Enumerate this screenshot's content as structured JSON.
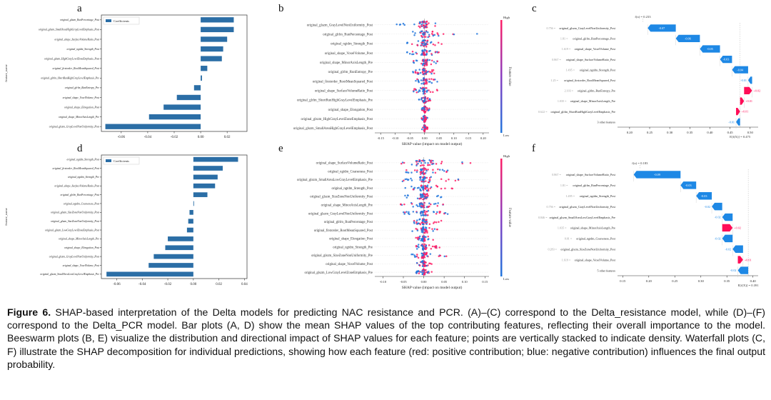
{
  "figure": {
    "caption_label": "Figure 6.",
    "caption_text": "SHAP-based interpretation of the Delta models for predicting NAC resistance and PCR. (A)–(C) correspond to the Delta_resistance model, while (D)–(F) correspond to the Delta_PCR model. Bar plots (A, D) show the mean SHAP values of the top contributing features, reflecting their overall importance to the model. Beeswarm plots (B, E) visualize the distribution and directional impact of SHAP values for each feature; points are vertically stacked to indicate density. Waterfall plots (C, F) illustrate the SHAP decomposition for individual predictions, showing how each feature (red: positive contribution; blue: negative contribution) influences the final output probability."
  },
  "panels": {
    "a": {
      "letter": "a"
    },
    "b": {
      "letter": "b"
    },
    "c": {
      "letter": "c"
    },
    "d": {
      "letter": "d"
    },
    "e": {
      "letter": "e"
    },
    "f": {
      "letter": "f"
    }
  },
  "colors": {
    "bar": "#2b6ea6",
    "shap_pos": "#ff0d57",
    "shap_neg": "#1e88e5",
    "beeswarm_low": "#2277dd",
    "beeswarm_high": "#ff1f66"
  },
  "chart_data": [
    {
      "panel": "a",
      "type": "bar",
      "orientation": "horizontal",
      "legend": "Coefficients",
      "legend_position": "top-left",
      "ylabel": "feature_name",
      "xlabel": "",
      "xlim": [
        -0.075,
        0.035
      ],
      "xticks": [
        "-0.06",
        "-0.04",
        "-0.02",
        "0.00",
        "0.02"
      ],
      "xtick_values": [
        -0.06,
        -0.04,
        -0.02,
        0.0,
        0.02
      ],
      "categories": [
        "original_glszm_RunPercentage_Post",
        "original_glszm_SmallAreaHighGrayLevelEmphasis_Post",
        "original_shape_SurfaceVolumeRatio_Post",
        "original_ngtdm_Strength_Post",
        "original_glszm_HighGrayLevelZoneEmphasis_Post",
        "original_firstorder_RootMeanSquared_Post",
        "original_glrlm_ShortRunHighGrayLevelEmphasis_Pre",
        "original_glrlm_RunEntropy_Pre",
        "original_shape_VoxelVolume_Post",
        "original_shape_Elongation_Post",
        "original_shape_MinorAxisLength_Pre",
        "original_glszm_GrayLevelNonUniformity_Post"
      ],
      "values": [
        0.025,
        0.025,
        0.02,
        0.017,
        0.016,
        0.005,
        0.001,
        -0.005,
        -0.018,
        -0.028,
        -0.039,
        -0.072
      ]
    },
    {
      "panel": "b",
      "type": "scatter",
      "subtype": "beeswarm",
      "xlabel": "SHAP value (impact on model output)",
      "colorbar_label": "Feature value",
      "colorbar_high": "High",
      "colorbar_low": "Low",
      "xlim": [
        -0.17,
        0.22
      ],
      "xticks": [
        "-0.15",
        "-0.10",
        "-0.05",
        "0.00",
        "0.05",
        "0.10",
        "0.15",
        "0.20"
      ],
      "xtick_values": [
        -0.15,
        -0.1,
        -0.05,
        0.0,
        0.05,
        0.1,
        0.15,
        0.2
      ],
      "categories": [
        "original_glszm_GrayLevelNonUniformity_Post",
        "original_glrlm_RunPercentage_Post",
        "original_ngtdm_Strength_Post",
        "original_shape_VoxelVolume_Post",
        "original_shape_MinorAxisLength_Pre",
        "original_glrlm_RunEntropy_Pre",
        "original_firstorder_RootMeanSquared_Post",
        "original_shape_SurfaceVolumeRatio_Post",
        "original_glrlm_ShortRunHighGrayLevelEmphasis_Pre",
        "original_shape_Elongation_Post",
        "original_glszm_HighGrayLevelZoneEmphasis_Post",
        "original_glszm_SmallAreaHighGrayLevelEmphasis_Post"
      ],
      "ranges": [
        [
          -0.1,
          0.05
        ],
        [
          -0.05,
          0.2
        ],
        [
          -0.06,
          0.06
        ],
        [
          -0.06,
          0.05
        ],
        [
          -0.04,
          0.05
        ],
        [
          -0.04,
          0.05
        ],
        [
          -0.03,
          0.05
        ],
        [
          -0.04,
          0.05
        ],
        [
          -0.02,
          0.02
        ],
        [
          -0.01,
          0.02
        ],
        [
          -0.01,
          0.01
        ],
        [
          -0.01,
          0.01
        ]
      ]
    },
    {
      "panel": "c",
      "type": "bar",
      "subtype": "waterfall",
      "top_label": "f(x) = 0.233",
      "base_label": "E[f(X)] = 0.475",
      "xlim": [
        0.17,
        0.52
      ],
      "xticks": [
        "0.20",
        "0.25",
        "0.30",
        "0.35",
        "0.40",
        "0.45",
        "0.50"
      ],
      "xtick_values": [
        0.2,
        0.25,
        0.3,
        0.35,
        0.4,
        0.45,
        0.5
      ],
      "features": [
        {
          "value": "0.756",
          "name": "original_glszm_GrayLevelNonUniformity_Post",
          "shap": -0.07,
          "label": "-0.07"
        },
        {
          "value": "1.81",
          "name": "original_glrlm_RunPercentage_Post",
          "shap": -0.06,
          "label": "-0.06"
        },
        {
          "value": "1.619",
          "name": "original_shape_VoxelVolume_Post",
          "shap": -0.05,
          "label": "-0.05"
        },
        {
          "value": "0.867",
          "name": "original_shape_SurfaceVolumeRatio_Post",
          "shap": -0.03,
          "label": "-0.03"
        },
        {
          "value": "1.495",
          "name": "original_ngtdm_Strength_Post",
          "shap": -0.04,
          "label": "-0.04"
        },
        {
          "value": "1.25",
          "name": "original_firstorder_RootMeanSquared_Post",
          "shap": -0.01,
          "label": "-0.01"
        },
        {
          "value": "2.103",
          "name": "original_glrlm_RunEntropy_Pre",
          "shap": 0.02,
          "label": "+0.02"
        },
        {
          "value": "1.035",
          "name": "original_shape_MinorAxisLength_Pre",
          "shap": 0.01,
          "label": "+0.01"
        },
        {
          "value": "0.622",
          "name": "original_glrlm_ShortRunHighGrayLevelEmphasis_Pre",
          "shap": 0.01,
          "label": "+0.01"
        },
        {
          "value": "",
          "name": "3 other features",
          "shap": -0.01,
          "label": "-0.01"
        }
      ]
    },
    {
      "panel": "d",
      "type": "bar",
      "orientation": "horizontal",
      "legend": "Coefficients",
      "legend_position": "top-left",
      "ylabel": "feature_name",
      "xlabel": "",
      "xlim": [
        -0.072,
        0.042
      ],
      "xticks": [
        "-0.06",
        "-0.04",
        "-0.02",
        "0.00",
        "0.02",
        "0.04"
      ],
      "xtick_values": [
        -0.06,
        -0.04,
        -0.02,
        0.0,
        0.02,
        0.04
      ],
      "categories": [
        "original_ngtdm_Strength_Post",
        "original_firstorder_RootMeanSquared_Post",
        "original_ngtdm_Strength_Pre",
        "original_shape_SurfaceVolumeRatio_Post",
        "original_glrlm_RunPercentage_Post",
        "original_ngtdm_Coarseness_Post",
        "original_glszm_SizeZoneNonUniformity_Post",
        "original_glszm_SizeZoneNonUniformity_Post",
        "original_glszm_LowGrayLevelZoneEmphasis_Post",
        "original_shape_MinorAxisLength_Pre",
        "original_shape_Elongation_Post",
        "original_glszm_GrayLevelNonUniformity_Post",
        "original_shape_VoxelVolume_Post",
        "original_glszm_SmallAreaLowGrayLevelEmphasis_Pre"
      ],
      "values": [
        0.035,
        0.023,
        0.019,
        0.017,
        0.011,
        0.0005,
        -0.003,
        -0.004,
        -0.005,
        -0.02,
        -0.022,
        -0.031,
        -0.035,
        -0.068
      ]
    },
    {
      "panel": "e",
      "type": "scatter",
      "subtype": "beeswarm",
      "xlabel": "SHAP value (impact on model output)",
      "colorbar_label": "Feature value",
      "colorbar_high": "High",
      "colorbar_low": "Low",
      "xlim": [
        -0.12,
        0.16
      ],
      "xticks": [
        "-0.10",
        "-0.05",
        "0.00",
        "0.05",
        "0.10",
        "0.15"
      ],
      "xtick_values": [
        -0.1,
        -0.05,
        0.0,
        0.05,
        0.1,
        0.15
      ],
      "categories": [
        "original_shape_SurfaceVolumeRatio_Post",
        "original_ngtdm_Coarseness_Post",
        "original_glszm_SmallAreaLowGrayLevelEmphasis_Pre",
        "original_ngtdm_Strength_Post",
        "original_glszm_SizeZoneNonUniformity_Post",
        "original_shape_MinorAxisLength_Pre",
        "original_glszm_GrayLevelNonUniformity_Post",
        "original_glrlm_RunPercentage_Post",
        "original_firstorder_RootMeanSquared_Post",
        "original_shape_Elongation_Post",
        "original_ngtdm_Strength_Pre",
        "original_glszm_SizeZoneNonUniformity_Pre",
        "original_shape_VoxelVolume_Post",
        "original_glszm_LowGrayLevelZoneEmphasis_Pre"
      ],
      "ranges": [
        [
          -0.11,
          0.13
        ],
        [
          -0.05,
          0.07
        ],
        [
          -0.06,
          0.09
        ],
        [
          -0.05,
          0.1
        ],
        [
          -0.05,
          0.06
        ],
        [
          -0.06,
          0.05
        ],
        [
          -0.05,
          0.06
        ],
        [
          -0.03,
          0.05
        ],
        [
          -0.03,
          0.04
        ],
        [
          -0.02,
          0.03
        ],
        [
          -0.02,
          0.04
        ],
        [
          -0.03,
          0.06
        ],
        [
          -0.02,
          0.02
        ],
        [
          -0.02,
          0.02
        ]
      ]
    },
    {
      "panel": "f",
      "type": "bar",
      "subtype": "waterfall",
      "top_label": "f(x) = 0.183",
      "base_label": "E[f(X)] = 0.391",
      "xlim": [
        0.14,
        0.41
      ],
      "xticks": [
        "0.15",
        "0.20",
        "0.25",
        "0.30",
        "0.35",
        "0.40"
      ],
      "xtick_values": [
        0.15,
        0.2,
        0.25,
        0.3,
        0.35,
        0.4
      ],
      "features": [
        {
          "value": "0.867",
          "name": "original_shape_SurfaceVolumeRatio_Post",
          "shap": -0.09,
          "label": "-0.09"
        },
        {
          "value": "1.81",
          "name": "original_glrlm_RunPercentage_Post",
          "shap": -0.03,
          "label": "-0.03"
        },
        {
          "value": "1.495",
          "name": "original_ngtdm_Strength_Post",
          "shap": -0.03,
          "label": "-0.03"
        },
        {
          "value": "0.756",
          "name": "original_glszm_GrayLevelNonUniformity_Post",
          "shap": -0.02,
          "label": "-0.02"
        },
        {
          "value": "0.846",
          "name": "original_glszm_SmallAreaLowGrayLevelEmphasis_Pre",
          "shap": -0.02,
          "label": "-0.02"
        },
        {
          "value": "1.035",
          "name": "original_shape_MinorAxisLength_Pre",
          "shap": 0.02,
          "label": "+0.02"
        },
        {
          "value": "0.01",
          "name": "original_ngtdm_Coarseness_Post",
          "shap": -0.02,
          "label": "-0.02"
        },
        {
          "value": "0.283",
          "name": "original_glszm_SizeZoneNonUniformity_Post",
          "shap": -0.02,
          "label": "-0.02"
        },
        {
          "value": "1.619",
          "name": "original_shape_VoxelVolume_Post",
          "shap": 0.01,
          "label": "+0.01"
        },
        {
          "value": "",
          "name": "5 other features",
          "shap": -0.02,
          "label": "-0.02"
        }
      ]
    }
  ]
}
